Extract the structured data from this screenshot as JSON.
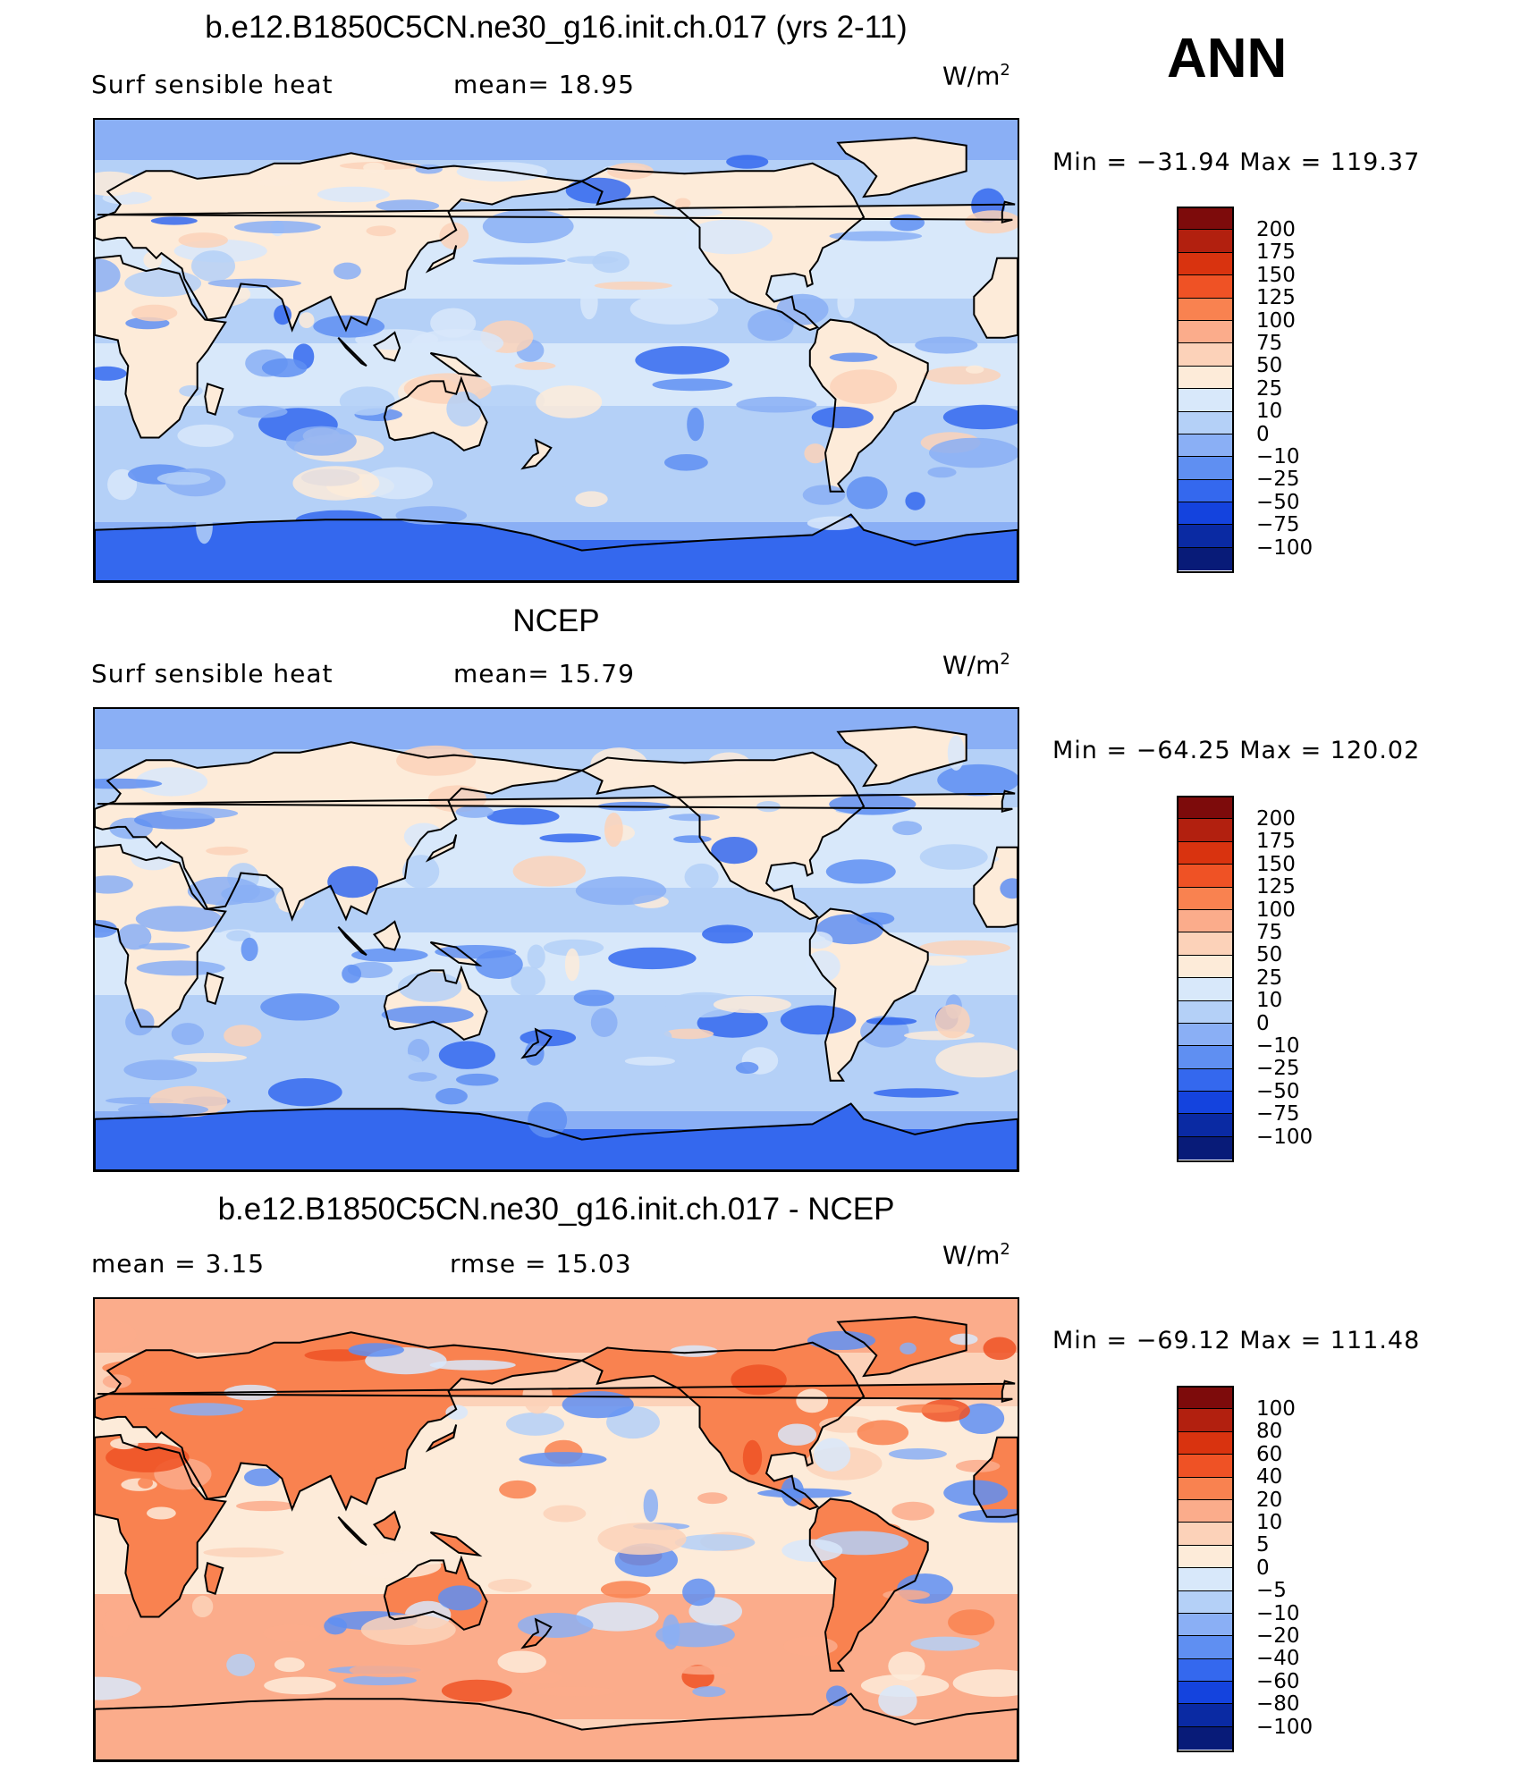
{
  "season": "ANN",
  "panels": [
    {
      "title": "b.e12.B1850C5CN.ne30_g16.init.ch.017 (yrs 2-11)",
      "left_label": "Surf  sensible  heat",
      "right_label": "mean=   18.95",
      "units": "W/m",
      "units_exp": "2",
      "minmax": "Min  =  −31.94  Max  =  119.37",
      "levels": [
        "200",
        "175",
        "150",
        "125",
        "100",
        "75",
        "50",
        "25",
        "10",
        "0",
        "−10",
        "−25",
        "−50",
        "−75",
        "−100"
      ],
      "colors": [
        "#7d0b0b",
        "#b2200f",
        "#d9330f",
        "#ef5225",
        "#f98250",
        "#fbac8b",
        "#fcd2b9",
        "#fdebd9",
        "#d8e8fa",
        "#b4d0f7",
        "#8aaff5",
        "#5f8ff2",
        "#3468ee",
        "#1443de",
        "#0a2aa3",
        "#081b78"
      ],
      "field_weights": [
        0.02,
        0.04,
        0.06,
        0.1,
        0.18,
        0.35,
        0.14,
        0.07,
        0.04
      ]
    },
    {
      "title": "NCEP",
      "left_label": "Surf  sensible  heat",
      "right_label": "mean=   15.79",
      "units": "W/m",
      "units_exp": "2",
      "minmax": "Min  =  −64.25  Max  =  120.02",
      "levels": [
        "200",
        "175",
        "150",
        "125",
        "100",
        "75",
        "50",
        "25",
        "10",
        "0",
        "−10",
        "−25",
        "−50",
        "−75",
        "−100"
      ],
      "colors": [
        "#7d0b0b",
        "#b2200f",
        "#d9330f",
        "#ef5225",
        "#f98250",
        "#fbac8b",
        "#fcd2b9",
        "#fdebd9",
        "#d8e8fa",
        "#b4d0f7",
        "#8aaff5",
        "#5f8ff2",
        "#3468ee",
        "#1443de",
        "#0a2aa3",
        "#081b78"
      ]
    },
    {
      "title": "b.e12.B1850C5CN.ne30_g16.init.ch.017 - NCEP",
      "left_label": "mean  =      3.15",
      "right_label": "rmse  =    15.03",
      "units": "W/m",
      "units_exp": "2",
      "minmax": "Min  =  −69.12  Max  =  111.48",
      "levels": [
        "100",
        "80",
        "60",
        "40",
        "20",
        "10",
        "5",
        "0",
        "−5",
        "−10",
        "−20",
        "−40",
        "−60",
        "−80",
        "−100"
      ],
      "colors": [
        "#7d0b0b",
        "#b2200f",
        "#d9330f",
        "#ef5225",
        "#f98250",
        "#fbac8b",
        "#fcd2b9",
        "#fdebd9",
        "#d8e8fa",
        "#b4d0f7",
        "#8aaff5",
        "#5f8ff2",
        "#3468ee",
        "#1443de",
        "#0a2aa3",
        "#081b78"
      ]
    }
  ]
}
